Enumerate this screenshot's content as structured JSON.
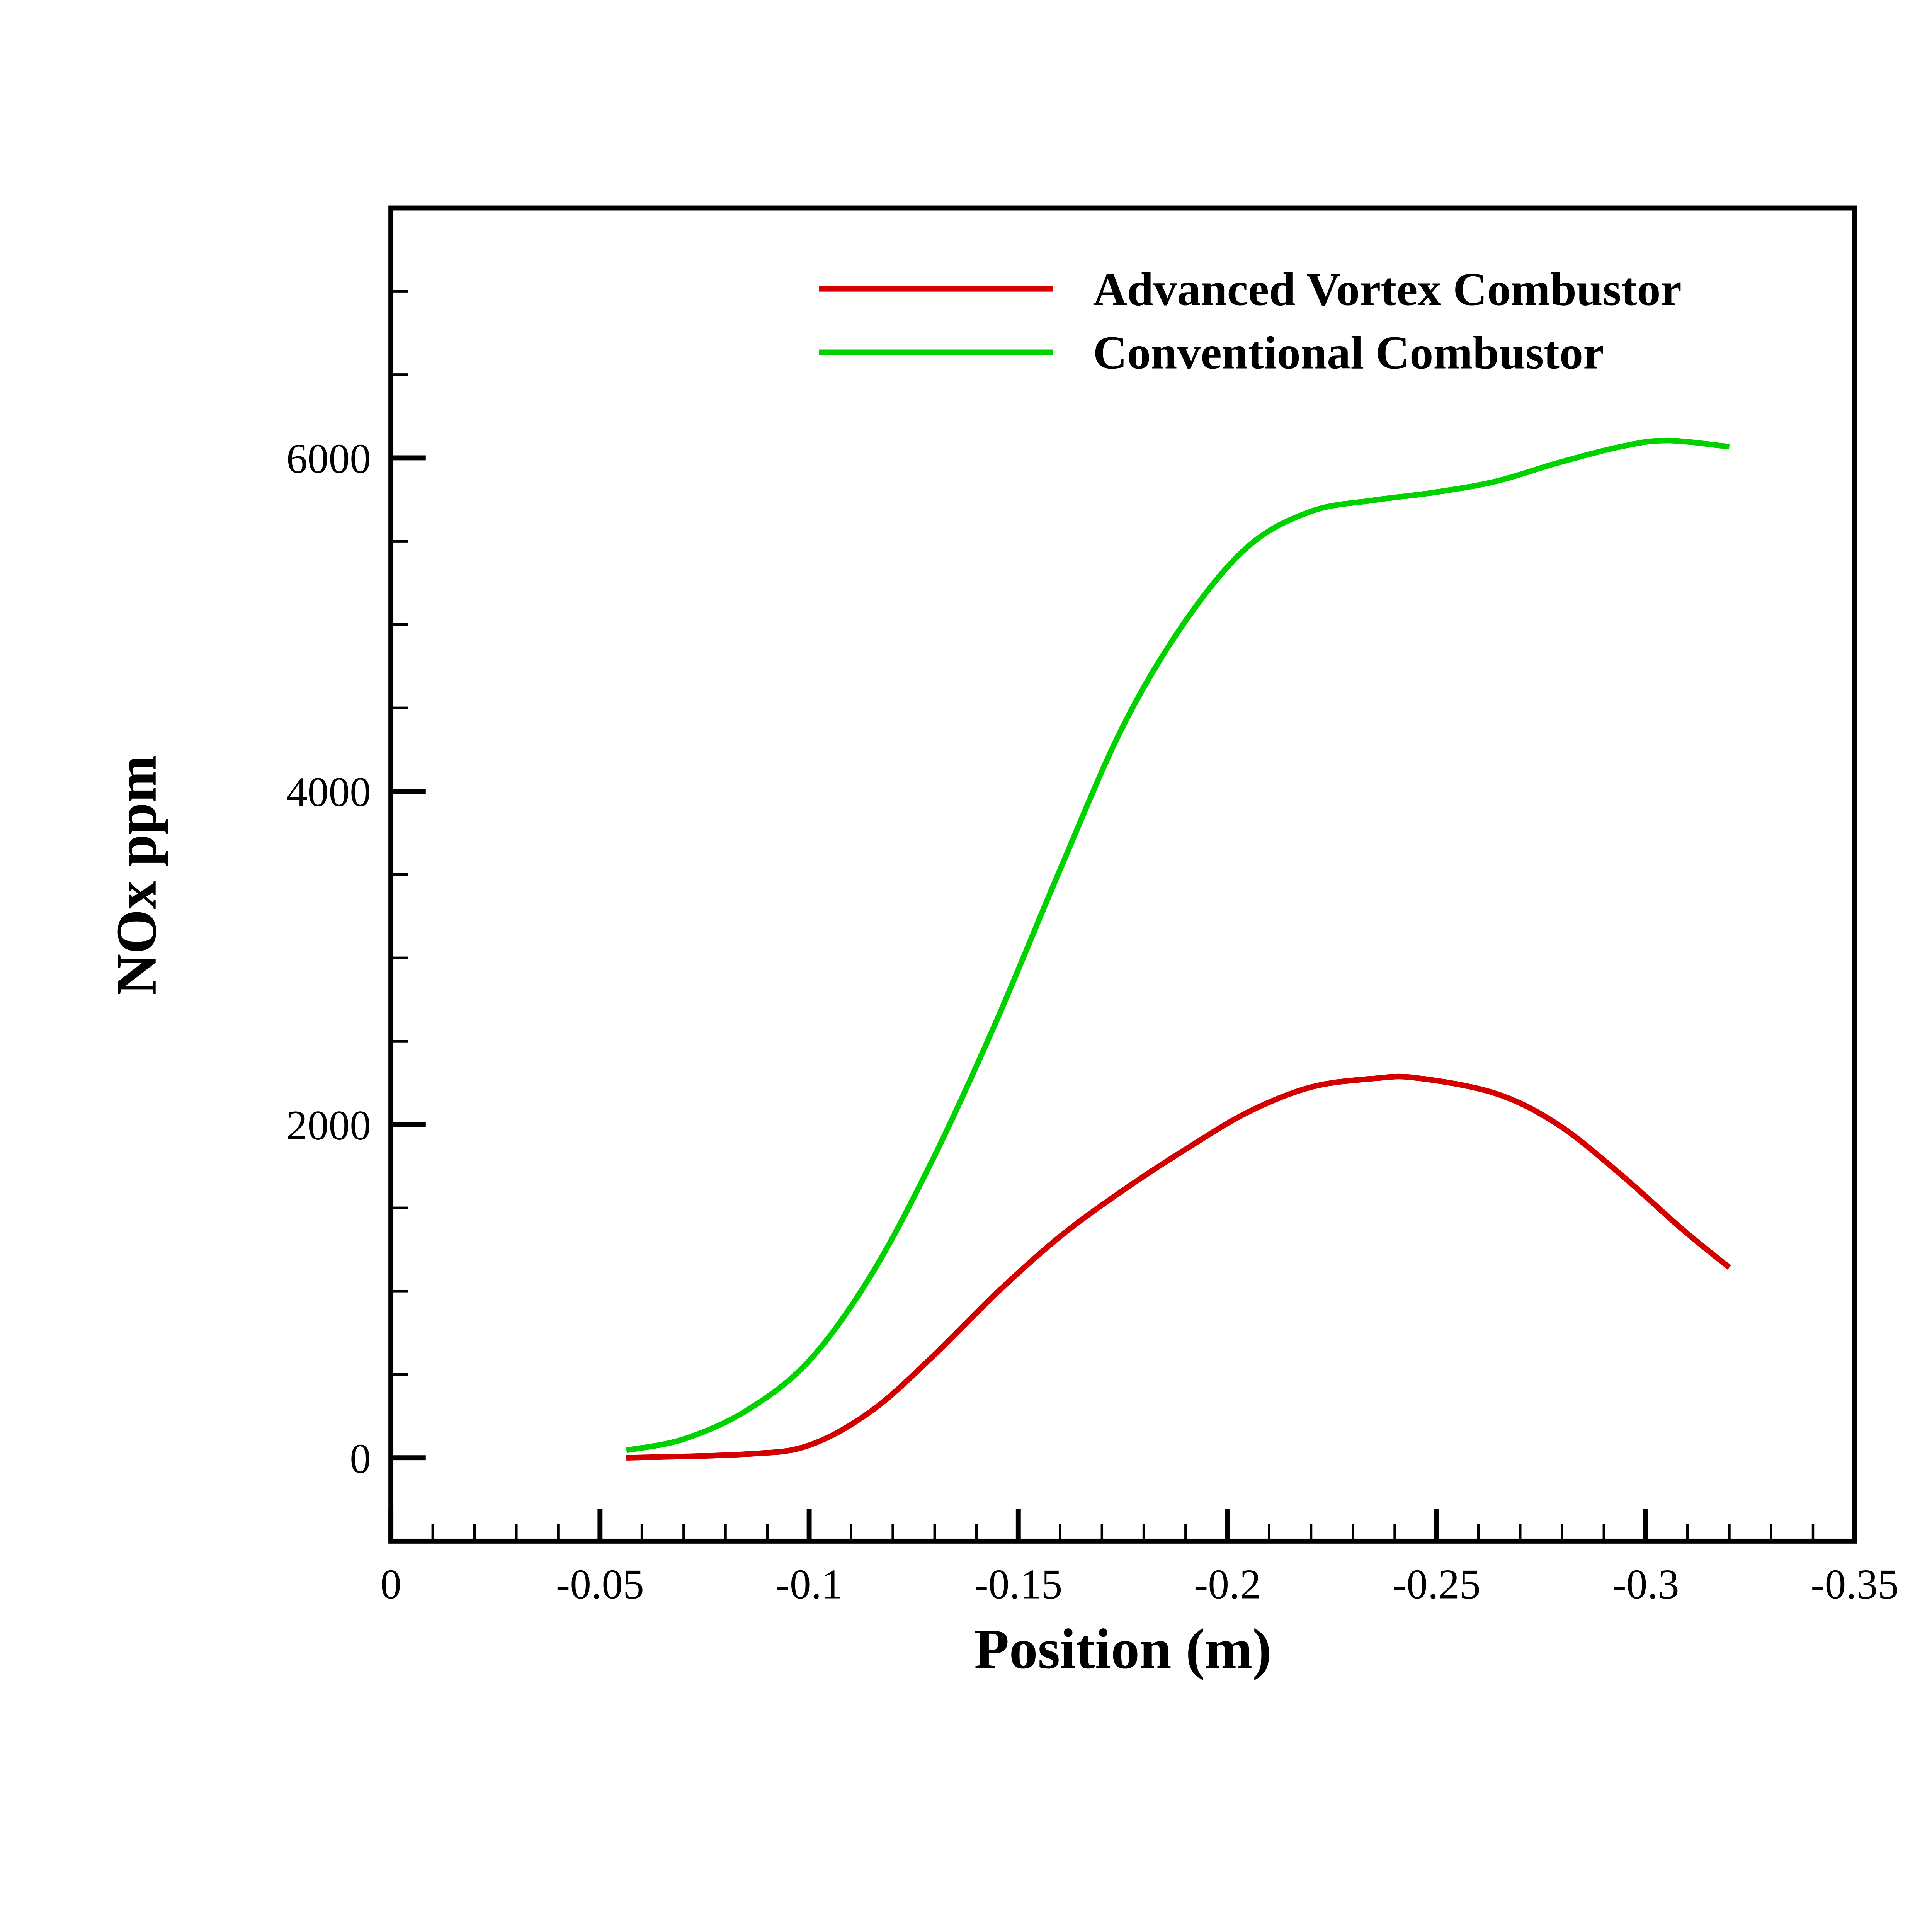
{
  "chart_data": {
    "type": "line",
    "title": "",
    "xlabel": "Position (m)",
    "ylabel": "NOx ppm",
    "xlim": [
      0,
      -0.35
    ],
    "ylim": [
      -500,
      7500
    ],
    "xticks": [
      0,
      -0.05,
      -0.1,
      -0.15,
      -0.2,
      -0.25,
      -0.3,
      -0.35
    ],
    "xtick_labels": [
      "0",
      "-0.05",
      "-0.1",
      "-0.15",
      "-0.2",
      "-0.25",
      "-0.3",
      "-0.35"
    ],
    "yticks": [
      0,
      2000,
      4000,
      6000
    ],
    "ytick_labels": [
      "0",
      "2000",
      "4000",
      "6000"
    ],
    "grid": false,
    "legend_position": "top-right",
    "series": [
      {
        "name": "Advanced Vortex Combustor",
        "color": "#d40000",
        "x": [
          -0.0563,
          -0.085,
          -0.1,
          -0.115,
          -0.13,
          -0.145,
          -0.16,
          -0.175,
          -0.19,
          -0.205,
          -0.22,
          -0.235,
          -0.245,
          -0.264,
          -0.279,
          -0.294,
          -0.309,
          -0.32
        ],
        "y": [
          0,
          22,
          75,
          283,
          619,
          993,
          1328,
          1604,
          1851,
          2075,
          2224,
          2276,
          2280,
          2187,
          2000,
          1701,
          1366,
          1142
        ]
      },
      {
        "name": "Conventional Combustor",
        "color": "#00d200",
        "x": [
          -0.0563,
          -0.07,
          -0.085,
          -0.1,
          -0.115,
          -0.13,
          -0.145,
          -0.16,
          -0.175,
          -0.19,
          -0.205,
          -0.22,
          -0.235,
          -0.249,
          -0.264,
          -0.279,
          -0.294,
          -0.305,
          -0.32
        ],
        "y": [
          45,
          112,
          283,
          582,
          1104,
          1813,
          2634,
          3530,
          4388,
          5022,
          5470,
          5679,
          5746,
          5791,
          5858,
          5970,
          6067,
          6104,
          6067
        ]
      }
    ]
  }
}
